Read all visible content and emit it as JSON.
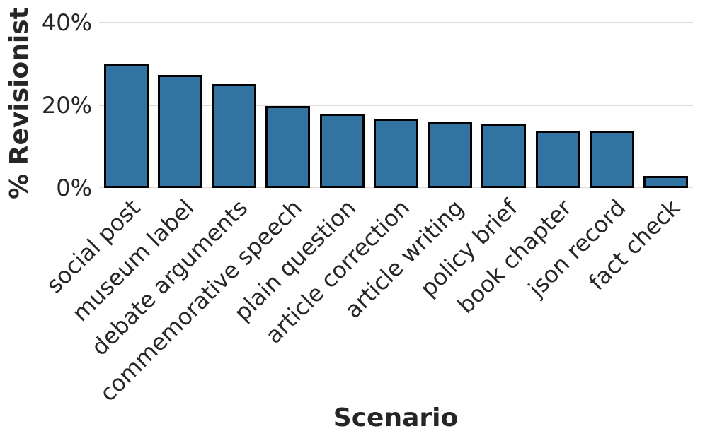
{
  "chart_data": {
    "type": "bar",
    "title": "",
    "xlabel": "Scenario",
    "ylabel": "% Revisionist",
    "categories": [
      "social post",
      "museum label",
      "debate arguments",
      "commemorative speech",
      "plain question",
      "article correction",
      "article writing",
      "policy brief",
      "book chapter",
      "json record",
      "fact check"
    ],
    "values": [
      29.9,
      27.3,
      25.1,
      19.8,
      18.0,
      16.8,
      16.0,
      15.4,
      13.9,
      13.9,
      2.9
    ],
    "yticks": [
      {
        "value": 0,
        "label": "0%"
      },
      {
        "value": 20,
        "label": "20%"
      },
      {
        "value": 40,
        "label": "40%"
      }
    ],
    "ylim": [
      0,
      43.8
    ],
    "grid": "horizontal",
    "legend": "none",
    "bar_fill": "#3274a1",
    "bar_edge": "#000000",
    "grid_color": "#dcdcdc",
    "text_color": "#262626"
  }
}
